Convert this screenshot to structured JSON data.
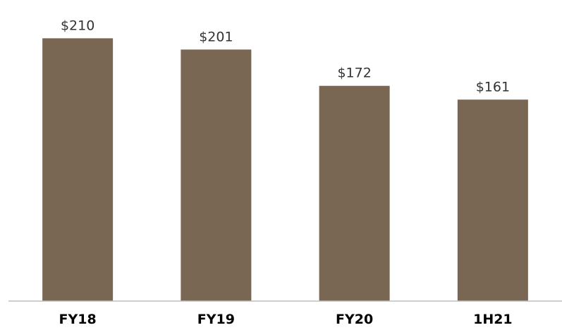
{
  "chart_data": {
    "type": "bar",
    "categories": [
      "FY18",
      "FY19",
      "FY20",
      "1H21"
    ],
    "values": [
      210,
      201,
      172,
      161
    ],
    "data_labels": [
      "$210",
      "$201",
      "$172",
      "$161"
    ],
    "title": "",
    "xlabel": "",
    "ylabel": "",
    "ylim": [
      0,
      222
    ],
    "grid": false,
    "legend": "none",
    "bar_color": "#7a6753",
    "axis_color": "#bfbfbf"
  }
}
